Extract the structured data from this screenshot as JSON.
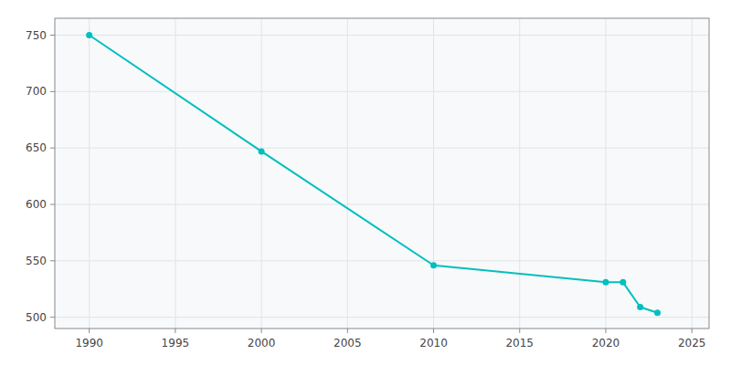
{
  "chart_data": {
    "type": "line",
    "x": [
      1990,
      2000,
      2010,
      2020,
      2021,
      2022,
      2023
    ],
    "values": [
      750,
      647,
      546,
      531,
      531,
      509,
      504
    ],
    "color": "#00BFBF",
    "marker": "circle",
    "xlim": [
      1988,
      2026
    ],
    "ylim": [
      490,
      765
    ],
    "xticks": [
      1990,
      1995,
      2000,
      2005,
      2010,
      2015,
      2020,
      2025
    ],
    "yticks": [
      500,
      550,
      600,
      650,
      700,
      750
    ],
    "grid": true
  }
}
